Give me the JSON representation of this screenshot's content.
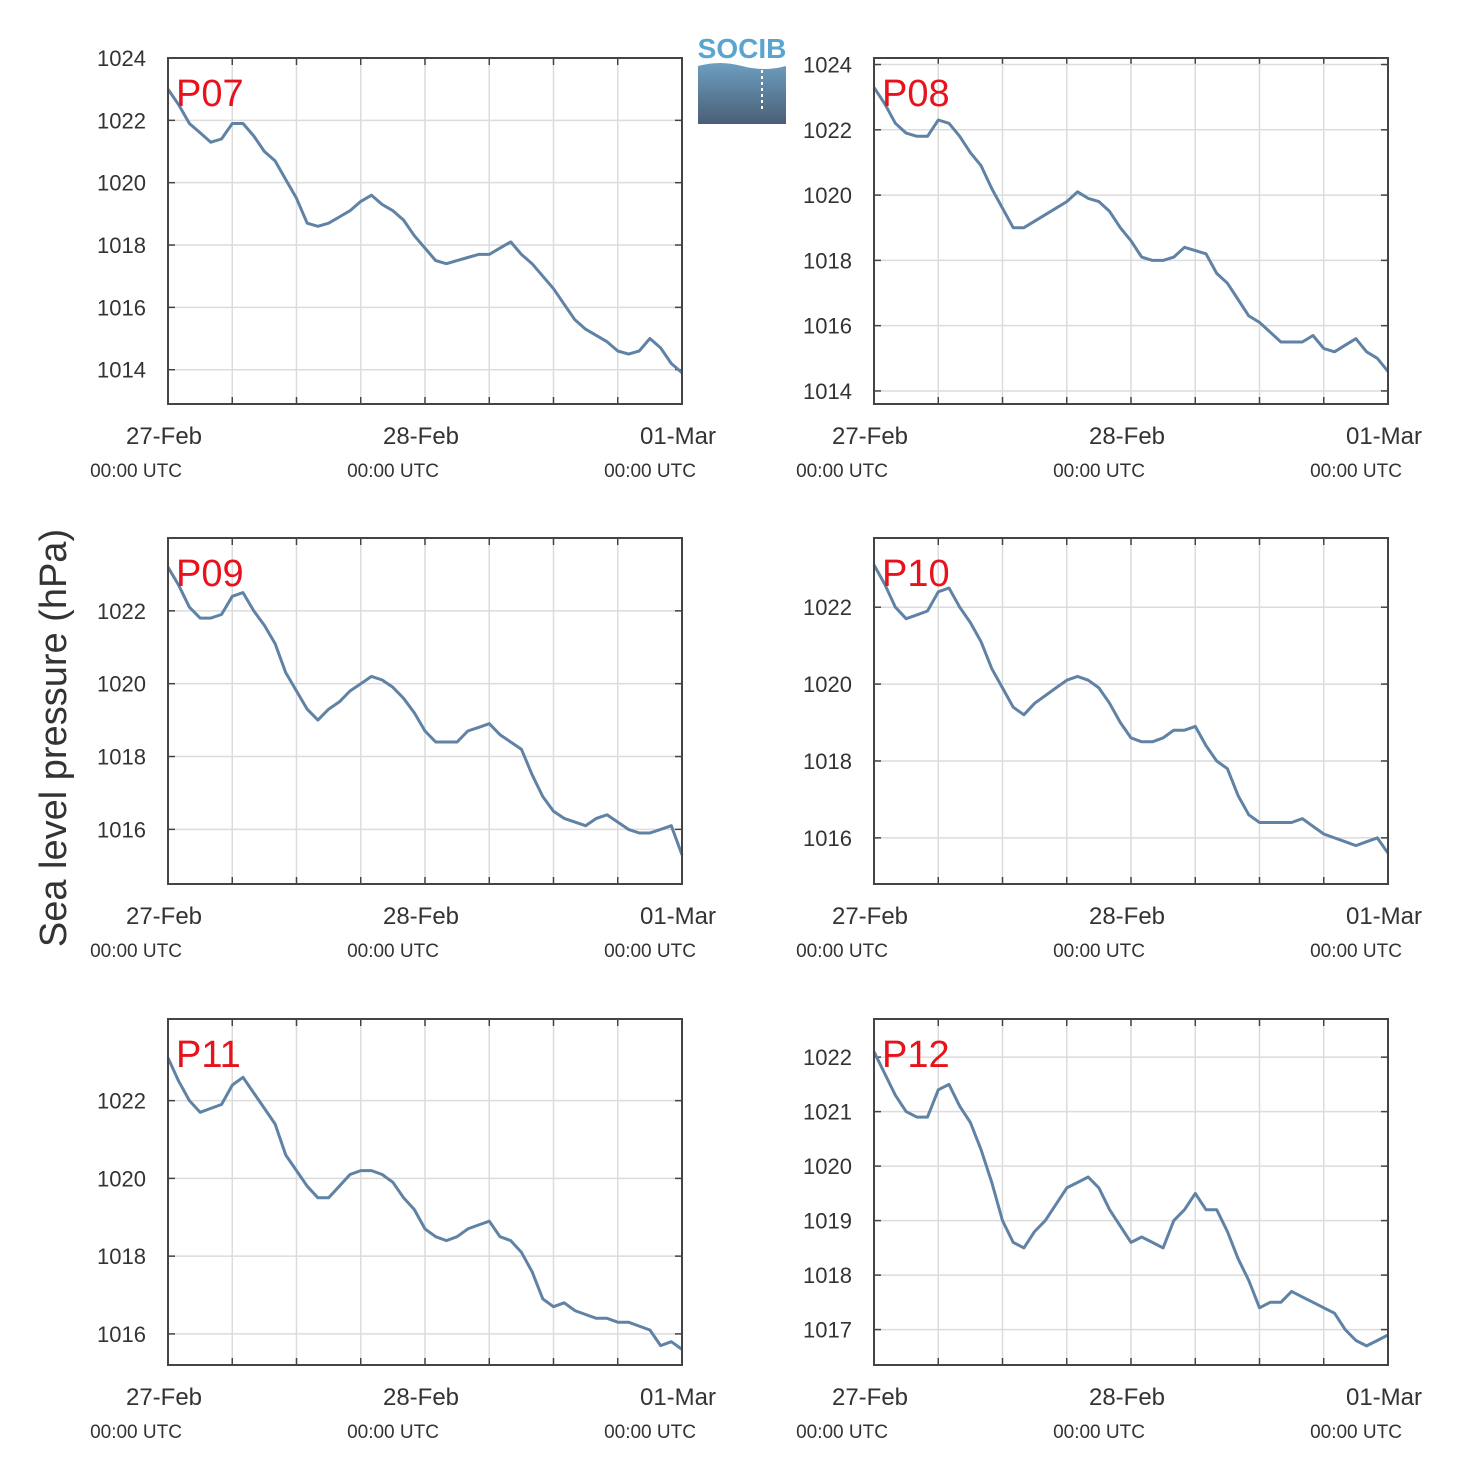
{
  "ylabel": "Sea level pressure (hPa)",
  "logo": {
    "text": "SOCIB",
    "colors": {
      "text": "#5aa5cf",
      "gradient_top": "#6d9ec0",
      "gradient_bottom": "#4a5f75"
    }
  },
  "colors": {
    "line": "#5f82a5",
    "grid": "#dcdcdc",
    "axis": "#444444",
    "panel_label": "#e8121c",
    "text": "#333333"
  },
  "x_ticks": [
    {
      "date": "27-Feb",
      "time": "00:00 UTC"
    },
    {
      "date": "28-Feb",
      "time": "00:00 UTC"
    },
    {
      "date": "01-Mar",
      "time": "00:00 UTC"
    }
  ],
  "chart_data": [
    {
      "type": "line",
      "label": "P07",
      "xlim": [
        0,
        48
      ],
      "ylim": [
        1012.9,
        1024
      ],
      "yticks": [
        1014,
        1016,
        1018,
        1020,
        1022,
        1024
      ],
      "x": [
        0,
        1,
        2,
        3,
        4,
        5,
        6,
        7,
        8,
        9,
        10,
        11,
        12,
        13,
        14,
        15,
        16,
        17,
        18,
        19,
        20,
        21,
        22,
        23,
        24,
        25,
        26,
        27,
        28,
        29,
        30,
        31,
        32,
        33,
        34,
        35,
        36,
        37,
        38,
        39,
        40,
        41,
        42,
        43,
        44,
        45,
        46,
        47,
        48
      ],
      "y": [
        1023.0,
        1022.5,
        1021.9,
        1021.6,
        1021.3,
        1021.4,
        1021.9,
        1021.9,
        1021.5,
        1021.0,
        1020.7,
        1020.1,
        1019.5,
        1018.7,
        1018.6,
        1018.7,
        1018.9,
        1019.1,
        1019.4,
        1019.6,
        1019.3,
        1019.1,
        1018.8,
        1018.3,
        1017.9,
        1017.5,
        1017.4,
        1017.5,
        1017.6,
        1017.7,
        1017.7,
        1017.9,
        1018.1,
        1017.7,
        1017.4,
        1017.0,
        1016.6,
        1016.1,
        1015.6,
        1015.3,
        1015.1,
        1014.9,
        1014.6,
        1014.5,
        1014.6,
        1015.0,
        1014.7,
        1014.2,
        1013.9
      ]
    },
    {
      "type": "line",
      "label": "P08",
      "xlim": [
        0,
        48
      ],
      "ylim": [
        1013.6,
        1024.2
      ],
      "yticks": [
        1014,
        1016,
        1018,
        1020,
        1022,
        1024
      ],
      "x": [
        0,
        1,
        2,
        3,
        4,
        5,
        6,
        7,
        8,
        9,
        10,
        11,
        12,
        13,
        14,
        15,
        16,
        17,
        18,
        19,
        20,
        21,
        22,
        23,
        24,
        25,
        26,
        27,
        28,
        29,
        30,
        31,
        32,
        33,
        34,
        35,
        36,
        37,
        38,
        39,
        40,
        41,
        42,
        43,
        44,
        45,
        46,
        47,
        48
      ],
      "y": [
        1023.3,
        1022.8,
        1022.2,
        1021.9,
        1021.8,
        1021.8,
        1022.3,
        1022.2,
        1021.8,
        1021.3,
        1020.9,
        1020.2,
        1019.6,
        1019.0,
        1019.0,
        1019.2,
        1019.4,
        1019.6,
        1019.8,
        1020.1,
        1019.9,
        1019.8,
        1019.5,
        1019.0,
        1018.6,
        1018.1,
        1018.0,
        1018.0,
        1018.1,
        1018.4,
        1018.3,
        1018.2,
        1017.6,
        1017.3,
        1016.8,
        1016.3,
        1016.1,
        1015.8,
        1015.5,
        1015.5,
        1015.5,
        1015.7,
        1015.3,
        1015.2,
        1015.4,
        1015.6,
        1015.2,
        1015.0,
        1014.6
      ]
    },
    {
      "type": "line",
      "label": "P09",
      "xlim": [
        0,
        48
      ],
      "ylim": [
        1014.5,
        1024.0
      ],
      "yticks": [
        1016,
        1018,
        1020,
        1022
      ],
      "x": [
        0,
        1,
        2,
        3,
        4,
        5,
        6,
        7,
        8,
        9,
        10,
        11,
        12,
        13,
        14,
        15,
        16,
        17,
        18,
        19,
        20,
        21,
        22,
        23,
        24,
        25,
        26,
        27,
        28,
        29,
        30,
        31,
        32,
        33,
        34,
        35,
        36,
        37,
        38,
        39,
        40,
        41,
        42,
        43,
        44,
        45,
        46,
        47,
        48
      ],
      "y": [
        1023.2,
        1022.7,
        1022.1,
        1021.8,
        1021.8,
        1021.9,
        1022.4,
        1022.5,
        1022.0,
        1021.6,
        1021.1,
        1020.3,
        1019.8,
        1019.3,
        1019.0,
        1019.3,
        1019.5,
        1019.8,
        1020.0,
        1020.2,
        1020.1,
        1019.9,
        1019.6,
        1019.2,
        1018.7,
        1018.4,
        1018.4,
        1018.4,
        1018.7,
        1018.8,
        1018.9,
        1018.6,
        1018.4,
        1018.2,
        1017.5,
        1016.9,
        1016.5,
        1016.3,
        1016.2,
        1016.1,
        1016.3,
        1016.4,
        1016.2,
        1016.0,
        1015.9,
        1015.9,
        1016.0,
        1016.1,
        1015.3
      ]
    },
    {
      "type": "line",
      "label": "P10",
      "xlim": [
        0,
        48
      ],
      "ylim": [
        1014.8,
        1023.8
      ],
      "yticks": [
        1016,
        1018,
        1020,
        1022
      ],
      "x": [
        0,
        1,
        2,
        3,
        4,
        5,
        6,
        7,
        8,
        9,
        10,
        11,
        12,
        13,
        14,
        15,
        16,
        17,
        18,
        19,
        20,
        21,
        22,
        23,
        24,
        25,
        26,
        27,
        28,
        29,
        30,
        31,
        32,
        33,
        34,
        35,
        36,
        37,
        38,
        39,
        40,
        41,
        42,
        43,
        44,
        45,
        46,
        47,
        48
      ],
      "y": [
        1023.1,
        1022.6,
        1022.0,
        1021.7,
        1021.8,
        1021.9,
        1022.4,
        1022.5,
        1022.0,
        1021.6,
        1021.1,
        1020.4,
        1019.9,
        1019.4,
        1019.2,
        1019.5,
        1019.7,
        1019.9,
        1020.1,
        1020.2,
        1020.1,
        1019.9,
        1019.5,
        1019.0,
        1018.6,
        1018.5,
        1018.5,
        1018.6,
        1018.8,
        1018.8,
        1018.9,
        1018.4,
        1018.0,
        1017.8,
        1017.1,
        1016.6,
        1016.4,
        1016.4,
        1016.4,
        1016.4,
        1016.5,
        1016.3,
        1016.1,
        1016.0,
        1015.9,
        1015.8,
        1015.9,
        1016.0,
        1015.6
      ]
    },
    {
      "type": "line",
      "label": "P11",
      "xlim": [
        0,
        48
      ],
      "ylim": [
        1015.2,
        1024.1
      ],
      "yticks": [
        1016,
        1018,
        1020,
        1022
      ],
      "x": [
        0,
        1,
        2,
        3,
        4,
        5,
        6,
        7,
        8,
        9,
        10,
        11,
        12,
        13,
        14,
        15,
        16,
        17,
        18,
        19,
        20,
        21,
        22,
        23,
        24,
        25,
        26,
        27,
        28,
        29,
        30,
        31,
        32,
        33,
        34,
        35,
        36,
        37,
        38,
        39,
        40,
        41,
        42,
        43,
        44,
        45,
        46,
        47,
        48
      ],
      "y": [
        1023.1,
        1022.5,
        1022.0,
        1021.7,
        1021.8,
        1021.9,
        1022.4,
        1022.6,
        1022.2,
        1021.8,
        1021.4,
        1020.6,
        1020.2,
        1019.8,
        1019.5,
        1019.5,
        1019.8,
        1020.1,
        1020.2,
        1020.2,
        1020.1,
        1019.9,
        1019.5,
        1019.2,
        1018.7,
        1018.5,
        1018.4,
        1018.5,
        1018.7,
        1018.8,
        1018.9,
        1018.5,
        1018.4,
        1018.1,
        1017.6,
        1016.9,
        1016.7,
        1016.8,
        1016.6,
        1016.5,
        1016.4,
        1016.4,
        1016.3,
        1016.3,
        1016.2,
        1016.1,
        1015.7,
        1015.8,
        1015.6
      ]
    },
    {
      "type": "line",
      "label": "P12",
      "xlim": [
        0,
        48
      ],
      "ylim": [
        1016.35,
        1022.7
      ],
      "yticks": [
        1017,
        1018,
        1019,
        1020,
        1021,
        1022
      ],
      "x": [
        0,
        1,
        2,
        3,
        4,
        5,
        6,
        7,
        8,
        9,
        10,
        11,
        12,
        13,
        14,
        15,
        16,
        17,
        18,
        19,
        20,
        21,
        22,
        23,
        24,
        25,
        26,
        27,
        28,
        29,
        30,
        31,
        32,
        33,
        34,
        35,
        36,
        37,
        38,
        39,
        40,
        41,
        42,
        43,
        44,
        45,
        46,
        47,
        48
      ],
      "y": [
        1022.1,
        1021.7,
        1021.3,
        1021.0,
        1020.9,
        1020.9,
        1021.4,
        1021.5,
        1021.1,
        1020.8,
        1020.3,
        1019.7,
        1019.0,
        1018.6,
        1018.5,
        1018.8,
        1019.0,
        1019.3,
        1019.6,
        1019.7,
        1019.8,
        1019.6,
        1019.2,
        1018.9,
        1018.6,
        1018.7,
        1018.6,
        1018.5,
        1019.0,
        1019.2,
        1019.5,
        1019.2,
        1019.2,
        1018.8,
        1018.3,
        1017.9,
        1017.4,
        1017.5,
        1017.5,
        1017.7,
        1017.6,
        1017.5,
        1017.4,
        1017.3,
        1017.0,
        1016.8,
        1016.7,
        1016.8,
        1016.9
      ]
    }
  ]
}
